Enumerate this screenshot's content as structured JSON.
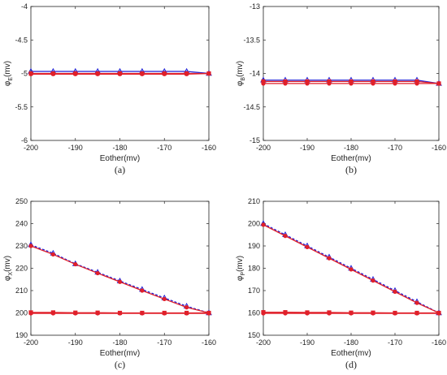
{
  "chart_data": [
    {
      "type": "line",
      "panel_label": "(a)",
      "xlabel": "Eother(mv)",
      "ylabel_main": "φ",
      "ylabel_sub": "E",
      "ylabel_unit": "(mv)",
      "xlim": [
        -200,
        -160
      ],
      "ylim": [
        -6,
        -4
      ],
      "xticks": [
        -200,
        -190,
        -180,
        -170,
        -160
      ],
      "xtick_labels": [
        "-200",
        "-190",
        "-180",
        "-170",
        "-160"
      ],
      "yticks": [
        -6,
        -5.5,
        -5,
        -4.5,
        -4
      ],
      "ytick_labels": [
        "-6",
        "-5.5",
        "-5",
        "-4.5",
        "-4"
      ],
      "x": [
        -200,
        -195,
        -190,
        -185,
        -180,
        -175,
        -170,
        -165,
        -160
      ],
      "series": [
        {
          "color": "#1f1fd6",
          "marker": "triangle",
          "dashed": false,
          "values": [
            -4.97,
            -4.97,
            -4.97,
            -4.97,
            -4.97,
            -4.97,
            -4.97,
            -4.97,
            -5.0
          ]
        },
        {
          "color": "#e0202a",
          "marker": "square",
          "dashed": false,
          "values": [
            -5.0,
            -5.0,
            -5.0,
            -5.0,
            -5.0,
            -5.0,
            -5.0,
            -5.0,
            -5.0
          ]
        },
        {
          "color": "#e0202a",
          "marker": "circle",
          "dashed": false,
          "values": [
            -5.01,
            -5.01,
            -5.01,
            -5.01,
            -5.01,
            -5.01,
            -5.01,
            -5.01,
            -5.0
          ]
        }
      ]
    },
    {
      "type": "line",
      "panel_label": "(b)",
      "xlabel": "Eother(mv)",
      "ylabel_main": "φ",
      "ylabel_sub": "B",
      "ylabel_unit": "(mv)",
      "xlim": [
        -200,
        -160
      ],
      "ylim": [
        -15,
        -13
      ],
      "xticks": [
        -200,
        -190,
        -180,
        -170,
        -160
      ],
      "xtick_labels": [
        "-200",
        "-190",
        "-180",
        "-170",
        "-160"
      ],
      "yticks": [
        -15,
        -14.5,
        -14,
        -13.5,
        -13
      ],
      "ytick_labels": [
        "-15",
        "-14.5",
        "-14",
        "-13.5",
        "-13"
      ],
      "x": [
        -200,
        -195,
        -190,
        -185,
        -180,
        -175,
        -170,
        -165,
        -160
      ],
      "series": [
        {
          "color": "#1f1fd6",
          "marker": "triangle",
          "dashed": false,
          "values": [
            -14.1,
            -14.1,
            -14.1,
            -14.1,
            -14.1,
            -14.1,
            -14.1,
            -14.1,
            -14.15
          ]
        },
        {
          "color": "#e0202a",
          "marker": "square",
          "dashed": false,
          "values": [
            -14.12,
            -14.12,
            -14.12,
            -14.12,
            -14.12,
            -14.12,
            -14.12,
            -14.12,
            -14.15
          ]
        },
        {
          "color": "#e0202a",
          "marker": "circle",
          "dashed": false,
          "values": [
            -14.15,
            -14.15,
            -14.15,
            -14.15,
            -14.15,
            -14.15,
            -14.15,
            -14.15,
            -14.15
          ]
        }
      ]
    },
    {
      "type": "line",
      "panel_label": "(c)",
      "xlabel": "Eother(mv)",
      "ylabel_main": "φ",
      "ylabel_sub": "X",
      "ylabel_unit": "(mv)",
      "xlim": [
        -200,
        -160
      ],
      "ylim": [
        190,
        250
      ],
      "xticks": [
        -200,
        -190,
        -180,
        -170,
        -160
      ],
      "xtick_labels": [
        "-200",
        "-190",
        "-180",
        "-170",
        "-160"
      ],
      "yticks": [
        190,
        200,
        210,
        220,
        230,
        240,
        250
      ],
      "ytick_labels": [
        "190",
        "200",
        "210",
        "220",
        "230",
        "240",
        "250"
      ],
      "x": [
        -200,
        -195,
        -190,
        -185,
        -180,
        -175,
        -170,
        -165,
        -160
      ],
      "series": [
        {
          "color": "#1f1fd6",
          "marker": "triangle",
          "dashed": true,
          "values": [
            230.5,
            226.7,
            222.0,
            218.2,
            214.3,
            210.5,
            206.7,
            203.0,
            200.0
          ]
        },
        {
          "color": "#e0202a",
          "marker": "circle",
          "dashed": false,
          "values": [
            230.0,
            226.2,
            221.8,
            217.8,
            213.9,
            210.0,
            206.2,
            202.5,
            200.0
          ]
        },
        {
          "color": "#e0202a",
          "marker": "square",
          "dashed": false,
          "values": [
            200.2,
            200.2,
            200.1,
            200.1,
            200.0,
            200.0,
            200.0,
            200.0,
            200.0
          ]
        },
        {
          "color": "#e0202a",
          "marker": "circle",
          "dashed": false,
          "values": [
            199.8,
            199.8,
            199.8,
            199.8,
            199.8,
            199.8,
            199.8,
            199.8,
            199.8
          ]
        }
      ]
    },
    {
      "type": "line",
      "panel_label": "(d)",
      "xlabel": "Eother(mv)",
      "ylabel_main": "φ",
      "ylabel_sub": "P",
      "ylabel_unit": "(mv)",
      "xlim": [
        -200,
        -160
      ],
      "ylim": [
        150,
        210
      ],
      "xticks": [
        -200,
        -190,
        -180,
        -170,
        -160
      ],
      "xtick_labels": [
        "-200",
        "-190",
        "-180",
        "-170",
        "-160"
      ],
      "yticks": [
        150,
        160,
        170,
        180,
        190,
        200,
        210
      ],
      "ytick_labels": [
        "150",
        "160",
        "170",
        "180",
        "190",
        "200",
        "210"
      ],
      "x": [
        -200,
        -195,
        -190,
        -185,
        -180,
        -175,
        -170,
        -165,
        -160
      ],
      "series": [
        {
          "color": "#1f1fd6",
          "marker": "triangle",
          "dashed": true,
          "values": [
            200.0,
            195.0,
            190.0,
            185.0,
            180.0,
            175.0,
            170.0,
            165.0,
            160.0
          ]
        },
        {
          "color": "#e0202a",
          "marker": "circle",
          "dashed": false,
          "values": [
            199.5,
            194.5,
            189.5,
            184.5,
            179.5,
            174.5,
            169.5,
            164.5,
            160.0
          ]
        },
        {
          "color": "#e0202a",
          "marker": "square",
          "dashed": false,
          "values": [
            160.3,
            160.3,
            160.2,
            160.2,
            160.1,
            160.1,
            160.0,
            160.0,
            160.0
          ]
        },
        {
          "color": "#e0202a",
          "marker": "circle",
          "dashed": false,
          "values": [
            159.8,
            159.8,
            159.8,
            159.8,
            159.8,
            159.8,
            159.8,
            159.8,
            159.8
          ]
        }
      ]
    }
  ]
}
